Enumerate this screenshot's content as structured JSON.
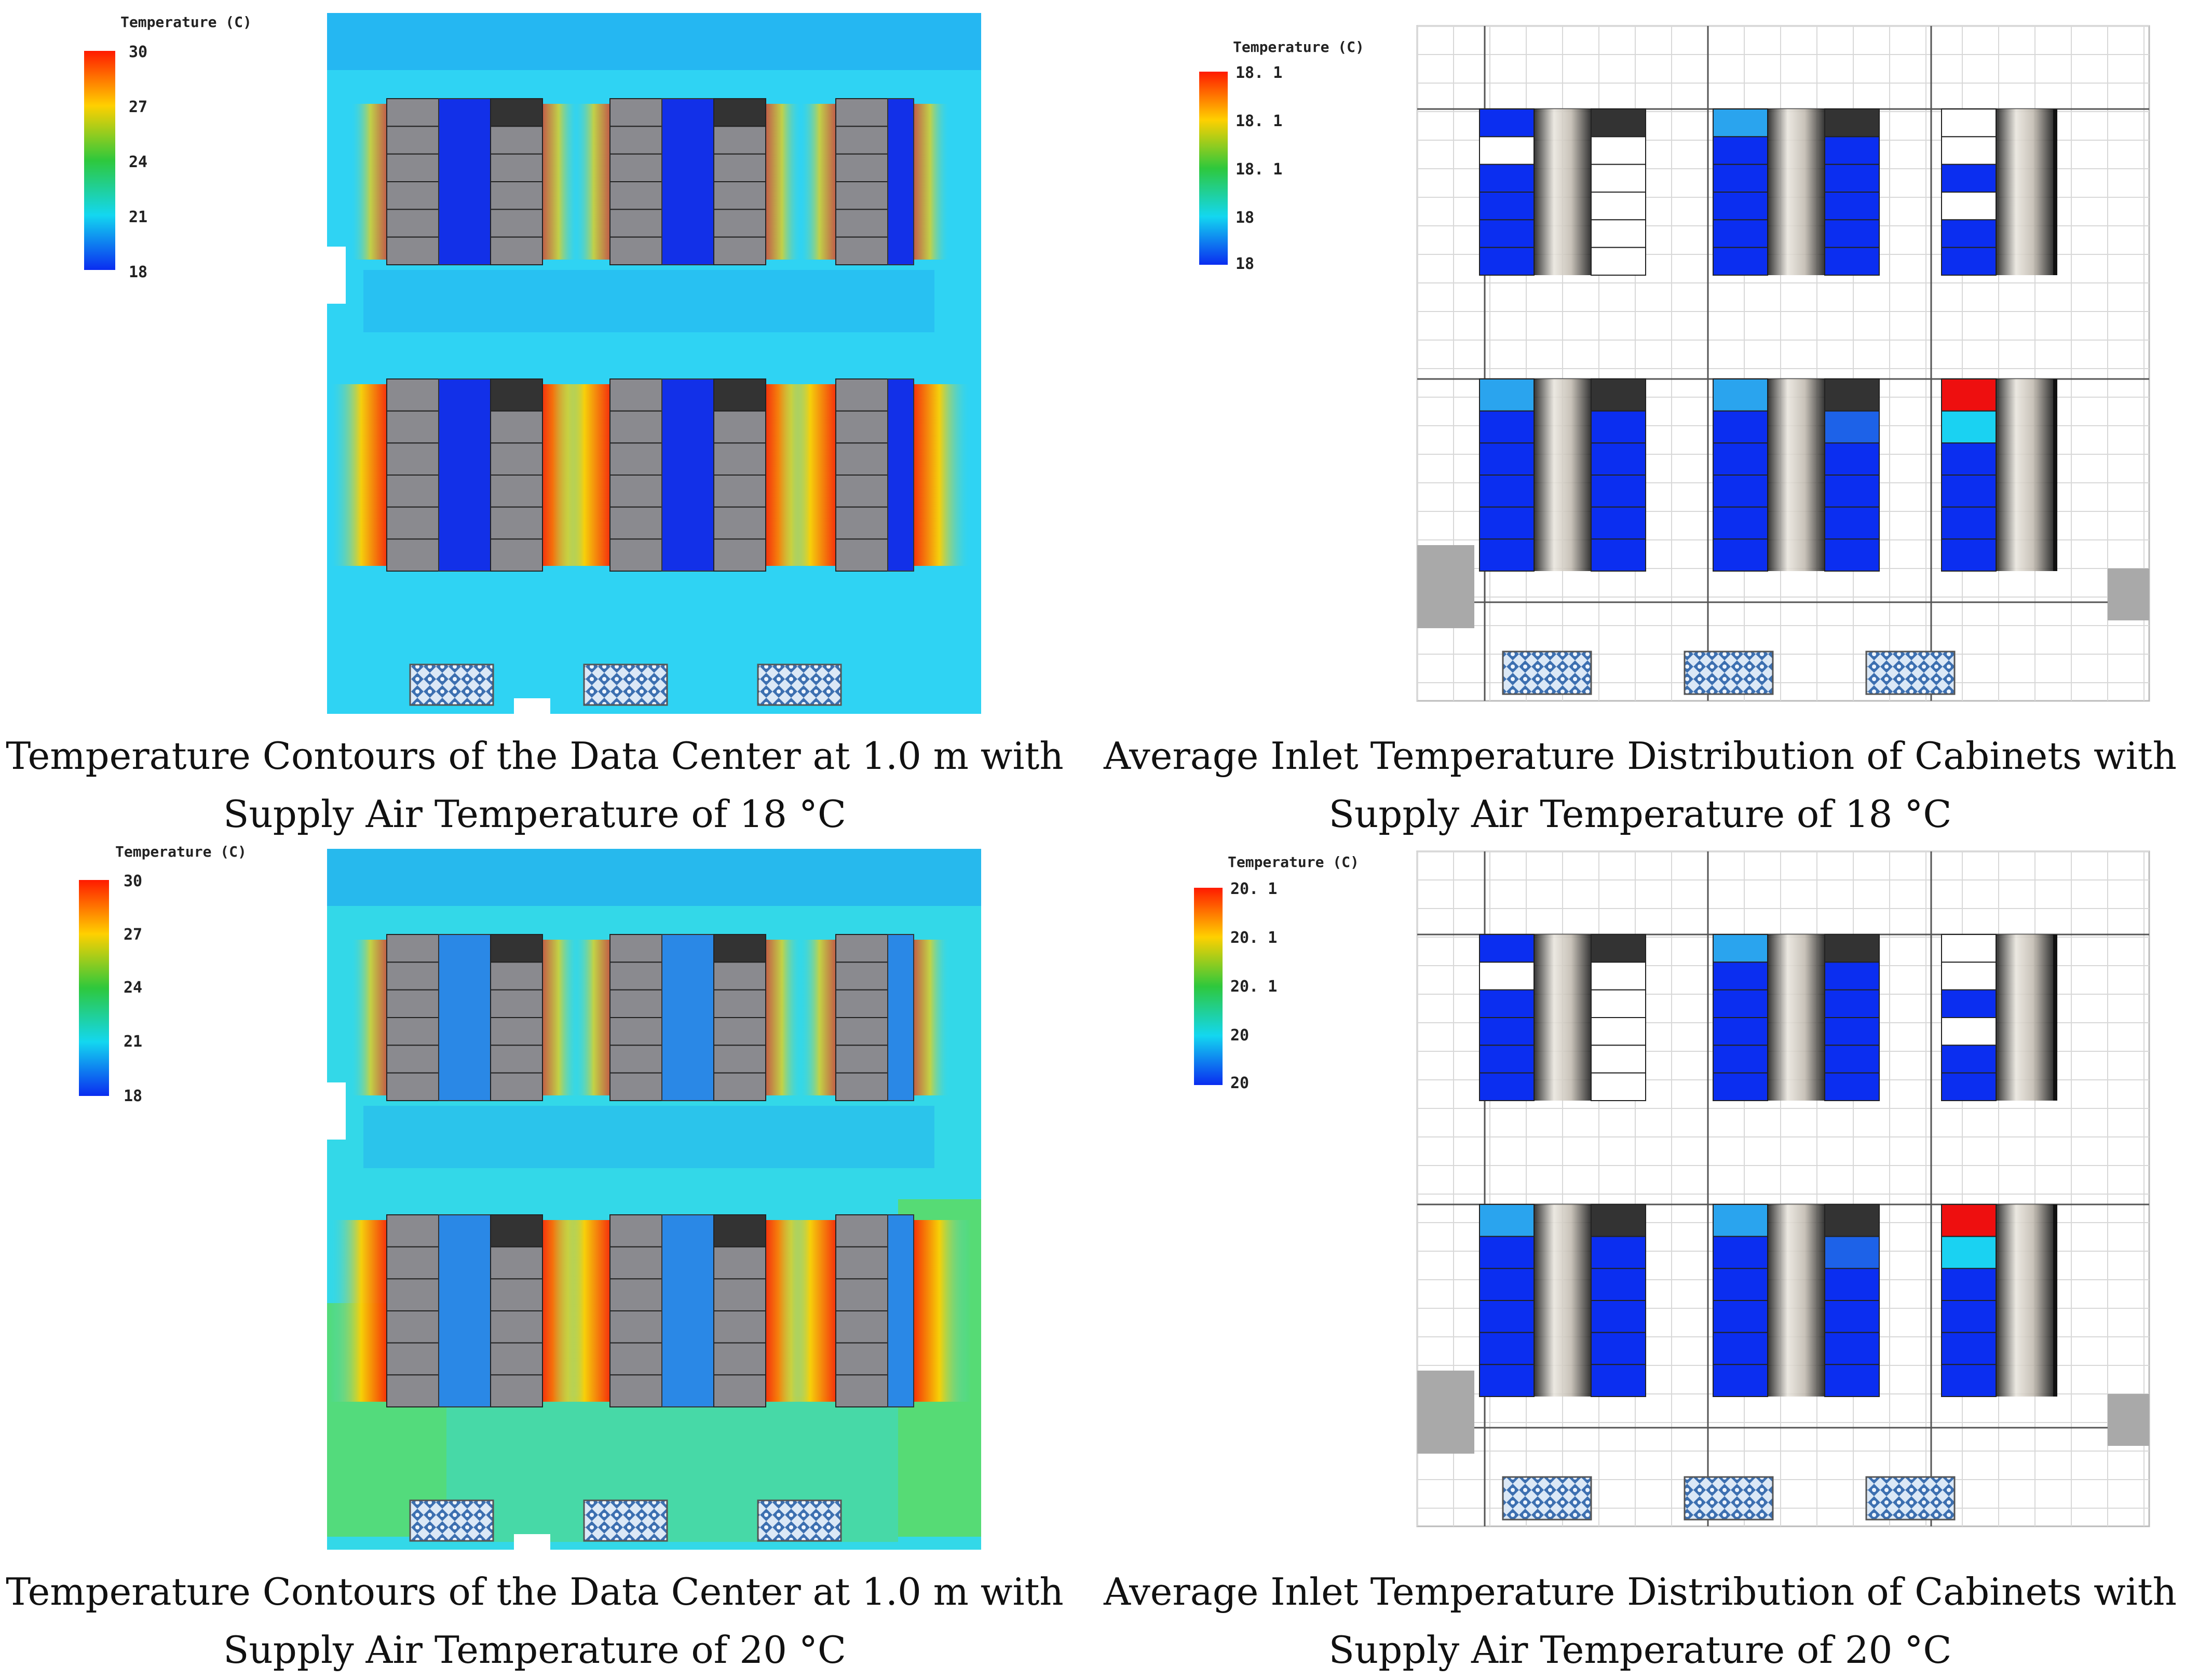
{
  "panels": [
    {
      "id": "contour-18",
      "colorbar": {
        "title": "Temperature (C)",
        "ticks": [
          "30",
          "27",
          "24",
          "21",
          "18"
        ]
      },
      "caption": [
        "Temperature Contours of the Data Center at 1.0 m with",
        "Supply Air Temperature of 18 °C"
      ]
    },
    {
      "id": "inlet-18",
      "colorbar": {
        "title": "Temperature (C)",
        "ticks": [
          "18. 1",
          "18. 1",
          "18. 1",
          "18",
          "18"
        ]
      },
      "caption": [
        "Average Inlet Temperature Distribution of Cabinets with",
        "Supply Air Temperature of 18 °C"
      ]
    },
    {
      "id": "contour-20",
      "colorbar": {
        "title": "Temperature (C)",
        "ticks": [
          "30",
          "27",
          "24",
          "21",
          "18"
        ]
      },
      "caption": [
        "Temperature Contours of the Data Center at 1.0 m with",
        "Supply Air Temperature of 20 °C"
      ]
    },
    {
      "id": "inlet-20",
      "colorbar": {
        "title": "Temperature (C)",
        "ticks": [
          "20. 1",
          "20. 1",
          "20. 1",
          "20",
          "20"
        ]
      },
      "caption": [
        "Average Inlet Temperature Distribution of Cabinets with",
        "Supply Air Temperature of 20 °C"
      ]
    }
  ],
  "colors": {
    "scale": [
      "#ff1a00",
      "#ffd000",
      "#2ec83c",
      "#13d7f0",
      "#0a2cf0"
    ],
    "field_18": "#2fd3f3",
    "field_20": "#33d8e8",
    "warm_green": "#5fdc58",
    "cabinet_gray": "#8a8a8f",
    "cabinet_dark": "#333333",
    "aisle_blue_18": "#1230e8",
    "aisle_blue_20": "#2a88e6",
    "inlet_blue": "#0b2ef0",
    "inlet_light": "#2aa4ee",
    "inlet_cyan": "#1ad2f2",
    "inlet_red": "#ee0f0f"
  }
}
